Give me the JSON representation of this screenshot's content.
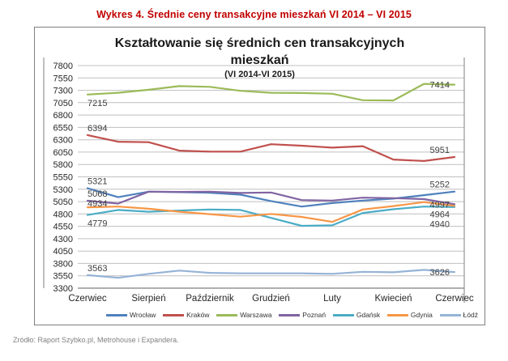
{
  "page": {
    "header": "Wykres 4. Średnie ceny transakcyjne mieszkań VI 2014 – VI 2015",
    "source": "Zródło: Raport Szybko.pl, Metrohouse i Expandera."
  },
  "chart_data": {
    "type": "line",
    "title": "Kształtowanie się średnich cen transakcyjnych mieszkań",
    "subtitle": "(VI 2014-VI 2015)",
    "y_min": 3300,
    "y_max": 7800,
    "y_step": 250,
    "ylim": [
      3300,
      7800
    ],
    "grid": true,
    "legend_position": "bottom",
    "months_count": 13,
    "x_labels": [
      "Czerwiec",
      "Sierpień",
      "Październik",
      "Grudzień",
      "Luty",
      "Kwiecień",
      "Czerwiec"
    ],
    "x_label_month_indexes": [
      0,
      2,
      4,
      6,
      8,
      10,
      12
    ],
    "colors": {
      "grid": "#BFBFBF",
      "axis": "#7F7F7F",
      "tick_text": "#262626",
      "label_text": "#404040",
      "header_accent": "#C00000"
    },
    "series": [
      {
        "name": "Wrocław",
        "slug": "wroclaw",
        "color": "#4F81BD",
        "values": [
          5321,
          5140,
          5250,
          5240,
          5230,
          5190,
          5060,
          4950,
          5020,
          5070,
          5110,
          5180,
          5252
        ]
      },
      {
        "name": "Kraków",
        "slug": "krakow",
        "color": "#C0504D",
        "values": [
          6394,
          6260,
          6250,
          6080,
          6060,
          6060,
          6210,
          6180,
          6140,
          6170,
          5900,
          5870,
          5951
        ]
      },
      {
        "name": "Warszawa",
        "slug": "warszawa",
        "color": "#9BBB59",
        "values": [
          7215,
          7250,
          7310,
          7385,
          7370,
          7290,
          7250,
          7245,
          7230,
          7100,
          7095,
          7430,
          7414
        ]
      },
      {
        "name": "Poznań",
        "slug": "poznan",
        "color": "#8064A2",
        "values": [
          5068,
          5010,
          5250,
          5245,
          5250,
          5225,
          5235,
          5080,
          5070,
          5130,
          5120,
          5100,
          4997
        ]
      },
      {
        "name": "Gdańsk",
        "slug": "gdansk",
        "color": "#4BACC6",
        "values": [
          4779,
          4880,
          4845,
          4870,
          4890,
          4880,
          4720,
          4560,
          4570,
          4820,
          4895,
          4950,
          4940
        ]
      },
      {
        "name": "Gdynia",
        "slug": "gdynia",
        "color": "#F79646",
        "values": [
          4934,
          4950,
          4905,
          4845,
          4795,
          4745,
          4800,
          4740,
          4640,
          4890,
          4960,
          5040,
          4964
        ]
      },
      {
        "name": "Łódź",
        "slug": "lodz",
        "color": "#95B3D7",
        "values": [
          3563,
          3510,
          3590,
          3655,
          3610,
          3600,
          3600,
          3600,
          3590,
          3630,
          3620,
          3670,
          3626
        ]
      }
    ],
    "point_labels": [
      {
        "series": "Warszawa",
        "position": "start",
        "value": 7215,
        "side": "below"
      },
      {
        "series": "Kraków",
        "position": "start",
        "value": 6394,
        "side": "above"
      },
      {
        "series": "Wrocław",
        "position": "start",
        "value": 5321,
        "side": "above"
      },
      {
        "series": "Poznań",
        "position": "start",
        "value": 5068,
        "side": "above"
      },
      {
        "series": "Gdynia",
        "position": "start",
        "value": 4934,
        "side": "above"
      },
      {
        "series": "Gdańsk",
        "position": "start",
        "value": 4779,
        "side": "below"
      },
      {
        "series": "Łódź",
        "position": "start",
        "value": 3563,
        "side": "above"
      },
      {
        "series": "Warszawa",
        "position": "end",
        "value": 7414,
        "side": "mid"
      },
      {
        "series": "Kraków",
        "position": "end",
        "value": 5951,
        "side": "above"
      },
      {
        "series": "Wrocław",
        "position": "end",
        "value": 5252,
        "side": "above"
      },
      {
        "series": "Poznań",
        "position": "end",
        "value": 4997,
        "side": "mid"
      },
      {
        "series": "Gdynia",
        "position": "end",
        "value": 4964,
        "side": "mid"
      },
      {
        "series": "Gdańsk",
        "position": "end",
        "value": 4940,
        "side": "mid"
      },
      {
        "series": "Łódź",
        "position": "end",
        "value": 3626,
        "side": "mid"
      }
    ]
  }
}
